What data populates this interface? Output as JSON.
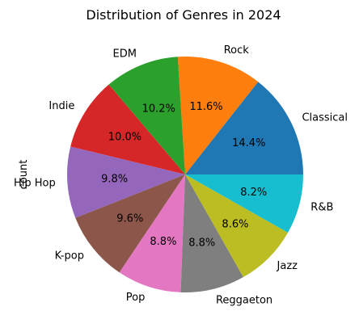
{
  "chart_data": {
    "type": "pie",
    "title": "Distribution of Genres in 2024",
    "ylabel": "count",
    "categories": [
      "Classical",
      "Rock",
      "EDM",
      "Indie",
      "Hip Hop",
      "K-pop",
      "Pop",
      "Reggaeton",
      "Jazz",
      "R&B"
    ],
    "values": [
      14.4,
      11.6,
      10.2,
      10.0,
      9.8,
      9.6,
      8.8,
      8.8,
      8.6,
      8.2
    ],
    "percent_labels": [
      "14.4%",
      "11.6%",
      "10.2%",
      "10.0%",
      "9.8%",
      "9.6%",
      "8.8%",
      "8.8%",
      "8.6%",
      "8.2%"
    ],
    "colors": [
      "#1f77b4",
      "#ff7f0e",
      "#2ca02c",
      "#d62728",
      "#9467bd",
      "#8c564b",
      "#e377c2",
      "#7f7f7f",
      "#bcbd22",
      "#17becf"
    ],
    "start_angle": 0,
    "direction": "counterclockwise",
    "legend": "none"
  }
}
